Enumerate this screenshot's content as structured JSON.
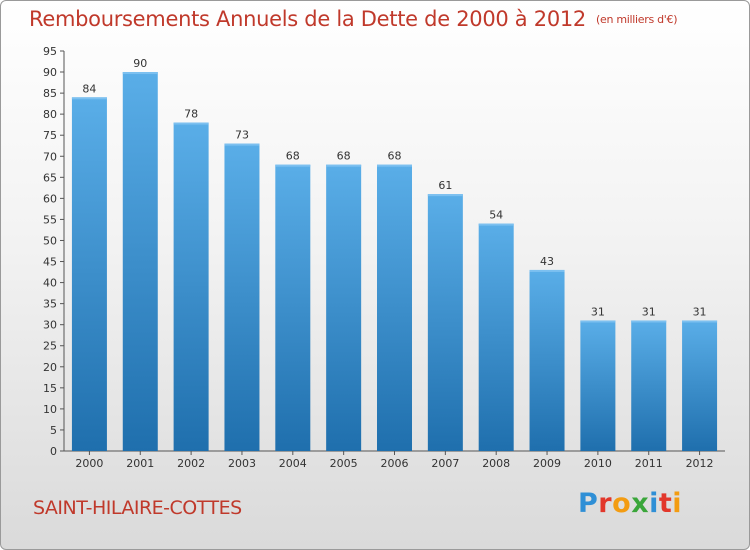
{
  "chart_data": {
    "type": "bar",
    "title": "Remboursements Annuels de la Dette de 2000 à 2012",
    "unit_label": "(en milliers d'€)",
    "categories": [
      "2000",
      "2001",
      "2002",
      "2003",
      "2004",
      "2005",
      "2006",
      "2007",
      "2008",
      "2009",
      "2010",
      "2011",
      "2012"
    ],
    "values": [
      84,
      90,
      78,
      73,
      68,
      68,
      68,
      61,
      54,
      43,
      31,
      31,
      31
    ],
    "ylim": [
      0,
      95
    ],
    "ytick_step": 5,
    "xlabel": "",
    "ylabel": "",
    "grid": false
  },
  "commune": "SAINT-HILAIRE-COTTES",
  "logo": {
    "letters": [
      "P",
      "r",
      "o",
      "x",
      "i",
      "t",
      "i"
    ],
    "colors": [
      "#2f8fd6",
      "#e2372b",
      "#f39c12",
      "#3aa63a",
      "#2f8fd6",
      "#e2372b",
      "#f39c12"
    ]
  },
  "colors": {
    "title": "#c0392b",
    "bar_dark": "#1f6fad",
    "bar_light": "#5aaee8"
  }
}
